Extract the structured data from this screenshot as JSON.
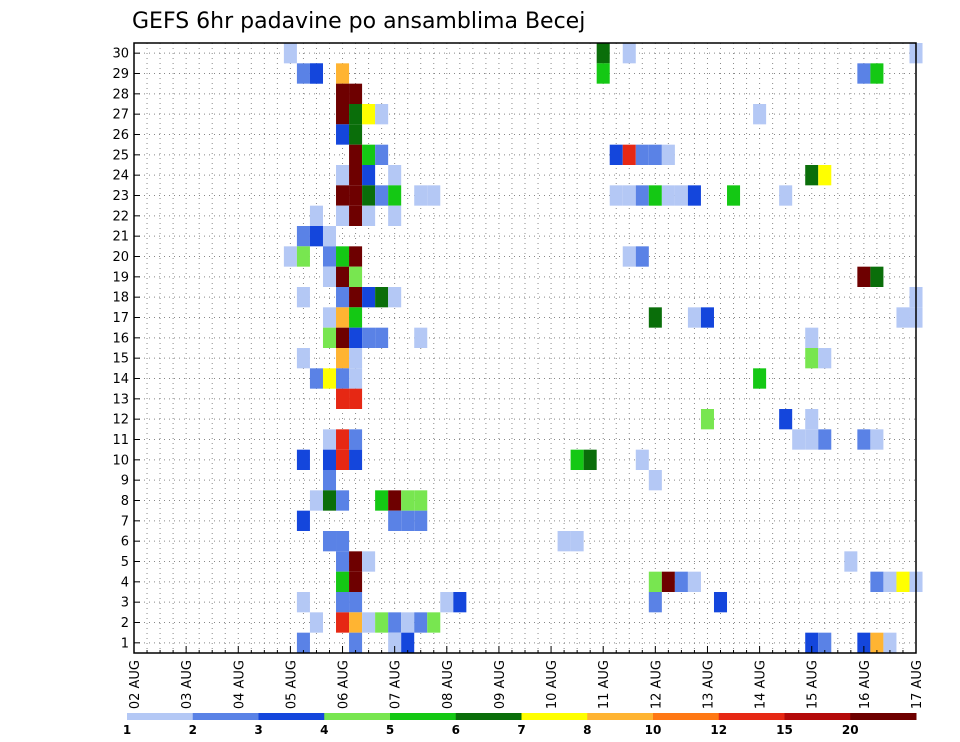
{
  "chart_data": {
    "type": "heatmap",
    "title": "GEFS 6hr padavine po ansamblima Becej",
    "xlabel": "",
    "ylabel": "",
    "x_tick_labels": [
      "02 AUG",
      "03 AUG",
      "04 AUG",
      "05 AUG",
      "06 AUG",
      "07 AUG",
      "08 AUG",
      "09 AUG",
      "10 AUG",
      "11 AUG",
      "12 AUG",
      "13 AUG",
      "14 AUG",
      "15 AUG",
      "16 AUG",
      "17 AUG"
    ],
    "y_tick_labels": [
      "1",
      "2",
      "3",
      "4",
      "5",
      "6",
      "7",
      "8",
      "9",
      "10",
      "11",
      "12",
      "13",
      "14",
      "15",
      "16",
      "17",
      "18",
      "19",
      "20",
      "21",
      "22",
      "23",
      "24",
      "25",
      "26",
      "27",
      "28",
      "29",
      "30"
    ],
    "ylim": [
      0,
      30
    ],
    "grid": true,
    "colorbar": {
      "labels": [
        "1",
        "2",
        "3",
        "4",
        "5",
        "6",
        "7",
        "8",
        "10",
        "12",
        "15",
        "20"
      ],
      "colors": [
        "#b4c8f5",
        "#5a82e6",
        "#1446dc",
        "#78e650",
        "#14c814",
        "#0a6e0a",
        "#ffff00",
        "#ffb432",
        "#ff7814",
        "#e62814",
        "#b40a0a",
        "#6e0000"
      ]
    },
    "cells": [
      [
        "05 AUG 00Z",
        30,
        1
      ],
      [
        "11 AUG 00Z",
        30,
        6
      ],
      [
        "11 AUG 12Z",
        30,
        1
      ],
      [
        "17 AUG 00Z",
        30,
        1
      ],
      [
        "05 AUG 06Z",
        29,
        2
      ],
      [
        "05 AUG 12Z",
        29,
        2
      ],
      [
        "05 AUG 12Z",
        29,
        3
      ],
      [
        "06 AUG 00Z",
        29,
        8
      ],
      [
        "11 AUG 00Z",
        29,
        5
      ],
      [
        "16 AUG 00Z",
        29,
        2
      ],
      [
        "16 AUG 06Z",
        29,
        5
      ],
      [
        "06 AUG 00Z",
        28,
        14
      ],
      [
        "06 AUG 06Z",
        28,
        13
      ],
      [
        "06 AUG 00Z",
        27,
        14
      ],
      [
        "06 AUG 06Z",
        27,
        6
      ],
      [
        "06 AUG 12Z",
        27,
        7
      ],
      [
        "06 AUG 18Z",
        27,
        1
      ],
      [
        "14 AUG 00Z",
        27,
        1
      ],
      [
        "06 AUG 00Z",
        26,
        3
      ],
      [
        "06 AUG 06Z",
        26,
        6
      ],
      [
        "06 AUG 06Z",
        25,
        15
      ],
      [
        "06 AUG 12Z",
        25,
        5
      ],
      [
        "06 AUG 18Z",
        25,
        2
      ],
      [
        "11 AUG 06Z",
        25,
        3
      ],
      [
        "11 AUG 12Z",
        25,
        10
      ],
      [
        "11 AUG 18Z",
        25,
        2
      ],
      [
        "12 AUG 00Z",
        25,
        2
      ],
      [
        "12 AUG 06Z",
        25,
        1
      ],
      [
        "06 AUG 00Z",
        24,
        1
      ],
      [
        "06 AUG 06Z",
        24,
        13
      ],
      [
        "06 AUG 12Z",
        24,
        3
      ],
      [
        "07 AUG 00Z",
        24,
        1
      ],
      [
        "15 AUG 00Z",
        24,
        6
      ],
      [
        "15 AUG 06Z",
        24,
        7
      ],
      [
        "06 AUG 00Z",
        23,
        14
      ],
      [
        "06 AUG 06Z",
        23,
        15
      ],
      [
        "06 AUG 12Z",
        23,
        6
      ],
      [
        "06 AUG 18Z",
        23,
        2
      ],
      [
        "07 AUG 00Z",
        23,
        5
      ],
      [
        "07 AUG 12Z",
        23,
        1
      ],
      [
        "07 AUG 18Z",
        23,
        1
      ],
      [
        "11 AUG 06Z",
        23,
        1
      ],
      [
        "11 AUG 12Z",
        23,
        1
      ],
      [
        "11 AUG 18Z",
        23,
        2
      ],
      [
        "12 AUG 00Z",
        23,
        5
      ],
      [
        "12 AUG 06Z",
        23,
        1
      ],
      [
        "12 AUG 12Z",
        23,
        1
      ],
      [
        "12 AUG 18Z",
        23,
        3
      ],
      [
        "13 AUG 12Z",
        23,
        5
      ],
      [
        "14 AUG 12Z",
        23,
        1
      ],
      [
        "05 AUG 12Z",
        22,
        1
      ],
      [
        "06 AUG 00Z",
        22,
        1
      ],
      [
        "06 AUG 06Z",
        22,
        13
      ],
      [
        "06 AUG 12Z",
        22,
        1
      ],
      [
        "07 AUG 00Z",
        22,
        1
      ],
      [
        "05 AUG 06Z",
        21,
        2
      ],
      [
        "05 AUG 12Z",
        21,
        3
      ],
      [
        "05 AUG 18Z",
        21,
        1
      ],
      [
        "05 AUG 00Z",
        20,
        1
      ],
      [
        "05 AUG 06Z",
        20,
        4
      ],
      [
        "05 AUG 18Z",
        20,
        2
      ],
      [
        "06 AUG 00Z",
        20,
        5
      ],
      [
        "06 AUG 06Z",
        20,
        15
      ],
      [
        "11 AUG 12Z",
        20,
        1
      ],
      [
        "11 AUG 18Z",
        20,
        2
      ],
      [
        "05 AUG 18Z",
        19,
        1
      ],
      [
        "06 AUG 00Z",
        19,
        15
      ],
      [
        "06 AUG 06Z",
        19,
        4
      ],
      [
        "16 AUG 00Z",
        19,
        14
      ],
      [
        "16 AUG 06Z",
        19,
        6
      ],
      [
        "05 AUG 06Z",
        18,
        1
      ],
      [
        "06 AUG 00Z",
        18,
        2
      ],
      [
        "06 AUG 06Z",
        18,
        15
      ],
      [
        "06 AUG 12Z",
        18,
        3
      ],
      [
        "06 AUG 18Z",
        18,
        6
      ],
      [
        "07 AUG 00Z",
        18,
        1
      ],
      [
        "17 AUG 00Z",
        18,
        1
      ],
      [
        "05 AUG 18Z",
        17,
        1
      ],
      [
        "06 AUG 00Z",
        17,
        8
      ],
      [
        "06 AUG 06Z",
        17,
        5
      ],
      [
        "12 AUG 00Z",
        17,
        6
      ],
      [
        "12 AUG 18Z",
        17,
        1
      ],
      [
        "13 AUG 00Z",
        17,
        3
      ],
      [
        "16 AUG 18Z",
        17,
        1
      ],
      [
        "17 AUG 00Z",
        17,
        1
      ],
      [
        "05 AUG 18Z",
        16,
        4
      ],
      [
        "06 AUG 00Z",
        16,
        15
      ],
      [
        "06 AUG 06Z",
        16,
        3
      ],
      [
        "06 AUG 12Z",
        16,
        2
      ],
      [
        "06 AUG 18Z",
        16,
        2
      ],
      [
        "07 AUG 12Z",
        16,
        1
      ],
      [
        "15 AUG 00Z",
        16,
        1
      ],
      [
        "05 AUG 06Z",
        15,
        1
      ],
      [
        "06 AUG 00Z",
        15,
        8
      ],
      [
        "06 AUG 06Z",
        15,
        1
      ],
      [
        "15 AUG 00Z",
        15,
        4
      ],
      [
        "15 AUG 06Z",
        15,
        1
      ],
      [
        "05 AUG 12Z",
        14,
        2
      ],
      [
        "05 AUG 18Z",
        14,
        7
      ],
      [
        "06 AUG 00Z",
        14,
        2
      ],
      [
        "06 AUG 06Z",
        14,
        1
      ],
      [
        "14 AUG 00Z",
        14,
        5
      ],
      [
        "06 AUG 00Z",
        13,
        10
      ],
      [
        "06 AUG 06Z",
        13,
        10
      ],
      [
        "14 AUG 12Z",
        12,
        3
      ],
      [
        "15 AUG 00Z",
        12,
        1
      ],
      [
        "13 AUG 00Z",
        12,
        4
      ],
      [
        "05 AUG 18Z",
        11,
        1
      ],
      [
        "06 AUG 00Z",
        11,
        10
      ],
      [
        "06 AUG 06Z",
        11,
        2
      ],
      [
        "14 AUG 18Z",
        11,
        1
      ],
      [
        "15 AUG 00Z",
        11,
        1
      ],
      [
        "15 AUG 06Z",
        11,
        2
      ],
      [
        "16 AUG 00Z",
        11,
        2
      ],
      [
        "16 AUG 06Z",
        11,
        1
      ],
      [
        "05 AUG 06Z",
        10,
        3
      ],
      [
        "05 AUG 18Z",
        10,
        3
      ],
      [
        "06 AUG 00Z",
        10,
        10
      ],
      [
        "06 AUG 06Z",
        10,
        3
      ],
      [
        "10 AUG 12Z",
        10,
        5
      ],
      [
        "10 AUG 18Z",
        10,
        6
      ],
      [
        "11 AUG 18Z",
        10,
        1
      ],
      [
        "05 AUG 18Z",
        9,
        2
      ],
      [
        "12 AUG 00Z",
        9,
        1
      ],
      [
        "05 AUG 12Z",
        8,
        1
      ],
      [
        "05 AUG 18Z",
        8,
        6
      ],
      [
        "06 AUG 00Z",
        8,
        2
      ],
      [
        "06 AUG 18Z",
        8,
        5
      ],
      [
        "07 AUG 00Z",
        8,
        15
      ],
      [
        "07 AUG 06Z",
        8,
        4
      ],
      [
        "07 AUG 12Z",
        8,
        4
      ],
      [
        "05 AUG 06Z",
        7,
        3
      ],
      [
        "07 AUG 00Z",
        7,
        2
      ],
      [
        "07 AUG 06Z",
        7,
        2
      ],
      [
        "07 AUG 12Z",
        7,
        2
      ],
      [
        "05 AUG 18Z",
        6,
        2
      ],
      [
        "06 AUG 00Z",
        6,
        2
      ],
      [
        "10 AUG 06Z",
        6,
        1
      ],
      [
        "10 AUG 12Z",
        6,
        1
      ],
      [
        "06 AUG 00Z",
        5,
        2
      ],
      [
        "06 AUG 06Z",
        5,
        14
      ],
      [
        "06 AUG 12Z",
        5,
        1
      ],
      [
        "15 AUG 18Z",
        5,
        1
      ],
      [
        "06 AUG 00Z",
        4,
        5
      ],
      [
        "06 AUG 06Z",
        4,
        15
      ],
      [
        "12 AUG 00Z",
        4,
        4
      ],
      [
        "12 AUG 06Z",
        4,
        14
      ],
      [
        "12 AUG 12Z",
        4,
        2
      ],
      [
        "12 AUG 18Z",
        4,
        1
      ],
      [
        "16 AUG 06Z",
        4,
        2
      ],
      [
        "16 AUG 12Z",
        4,
        1
      ],
      [
        "16 AUG 18Z",
        4,
        7
      ],
      [
        "17 AUG 00Z",
        4,
        1
      ],
      [
        "05 AUG 06Z",
        3,
        1
      ],
      [
        "06 AUG 00Z",
        3,
        2
      ],
      [
        "06 AUG 06Z",
        3,
        2
      ],
      [
        "08 AUG 00Z",
        3,
        1
      ],
      [
        "08 AUG 06Z",
        3,
        3
      ],
      [
        "12 AUG 00Z",
        3,
        2
      ],
      [
        "13 AUG 06Z",
        3,
        3
      ],
      [
        "05 AUG 12Z",
        2,
        1
      ],
      [
        "06 AUG 00Z",
        2,
        10
      ],
      [
        "06 AUG 06Z",
        2,
        8
      ],
      [
        "06 AUG 12Z",
        2,
        1
      ],
      [
        "06 AUG 18Z",
        2,
        4
      ],
      [
        "07 AUG 00Z",
        2,
        2
      ],
      [
        "07 AUG 06Z",
        2,
        1
      ],
      [
        "07 AUG 12Z",
        2,
        2
      ],
      [
        "07 AUG 18Z",
        2,
        4
      ],
      [
        "05 AUG 06Z",
        1,
        2
      ],
      [
        "06 AUG 06Z",
        1,
        2
      ],
      [
        "07 AUG 00Z",
        1,
        1
      ],
      [
        "07 AUG 06Z",
        1,
        3
      ],
      [
        "15 AUG 00Z",
        1,
        3
      ],
      [
        "15 AUG 06Z",
        1,
        2
      ],
      [
        "16 AUG 00Z",
        1,
        3
      ],
      [
        "16 AUG 06Z",
        1,
        8
      ],
      [
        "16 AUG 12Z",
        1,
        1
      ]
    ]
  }
}
